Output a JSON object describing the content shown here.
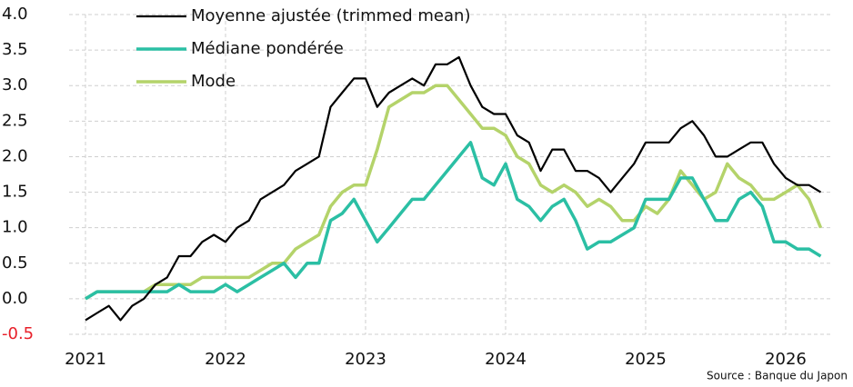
{
  "chart_data": {
    "type": "line",
    "source": "Source : Banque du Japon",
    "categories": [
      "2021",
      null,
      null,
      null,
      null,
      null,
      null,
      null,
      null,
      null,
      null,
      null,
      "2022",
      null,
      null,
      null,
      null,
      null,
      null,
      null,
      null,
      null,
      null,
      null,
      "2023",
      null,
      null,
      null,
      null,
      null,
      null,
      null,
      null,
      null,
      null,
      null,
      "2024",
      null,
      null,
      null,
      null,
      null,
      null,
      null,
      null,
      null,
      null,
      null,
      "2025",
      null,
      null,
      null,
      null,
      null,
      null,
      null,
      null,
      null,
      null,
      null,
      "2026",
      null,
      null,
      null
    ],
    "series": [
      {
        "name": "Moyenne ajustée (trimmed mean)",
        "color": "#000000",
        "values": [
          -0.3,
          -0.2,
          -0.1,
          -0.3,
          -0.1,
          0.0,
          0.2,
          0.3,
          0.6,
          0.6,
          0.8,
          0.9,
          0.8,
          1.0,
          1.1,
          1.4,
          1.5,
          1.6,
          1.8,
          1.9,
          2.0,
          2.7,
          2.9,
          3.1,
          3.1,
          2.7,
          2.9,
          3.0,
          3.1,
          3.0,
          3.3,
          3.3,
          3.4,
          3.0,
          2.7,
          2.6,
          2.6,
          2.3,
          2.2,
          1.8,
          2.1,
          2.1,
          1.8,
          1.8,
          1.7,
          1.5,
          1.7,
          1.9,
          2.2,
          2.2,
          2.2,
          2.4,
          2.5,
          2.3,
          2.0,
          2.0,
          2.1,
          2.2,
          2.2,
          1.9,
          1.7,
          1.6,
          1.6,
          1.5
        ]
      },
      {
        "name": "Médiane pondérée",
        "color": "#2bbfa4",
        "values": [
          0.0,
          0.1,
          0.1,
          0.1,
          0.1,
          0.1,
          0.1,
          0.1,
          0.2,
          0.1,
          0.1,
          0.1,
          0.2,
          0.1,
          0.2,
          0.3,
          0.4,
          0.5,
          0.3,
          0.5,
          0.5,
          1.1,
          1.2,
          1.4,
          1.1,
          0.8,
          1.0,
          1.2,
          1.4,
          1.4,
          1.6,
          1.8,
          2.0,
          2.2,
          1.7,
          1.6,
          1.9,
          1.4,
          1.3,
          1.1,
          1.3,
          1.4,
          1.1,
          0.7,
          0.8,
          0.8,
          0.9,
          1.0,
          1.4,
          1.4,
          1.4,
          1.7,
          1.7,
          1.4,
          1.1,
          1.1,
          1.4,
          1.5,
          1.3,
          0.8,
          0.8,
          0.7,
          0.7,
          0.6
        ]
      },
      {
        "name": "Mode",
        "color": "#b4d36a",
        "values": [
          0.0,
          0.1,
          0.1,
          0.1,
          0.1,
          0.1,
          0.2,
          0.2,
          0.2,
          0.2,
          0.3,
          0.3,
          0.3,
          0.3,
          0.3,
          0.4,
          0.5,
          0.5,
          0.7,
          0.8,
          0.9,
          1.3,
          1.5,
          1.6,
          1.6,
          2.1,
          2.7,
          2.8,
          2.9,
          2.9,
          3.0,
          3.0,
          2.8,
          2.6,
          2.4,
          2.4,
          2.3,
          2.0,
          1.9,
          1.6,
          1.5,
          1.6,
          1.5,
          1.3,
          1.4,
          1.3,
          1.1,
          1.1,
          1.3,
          1.2,
          1.4,
          1.8,
          1.6,
          1.4,
          1.5,
          1.9,
          1.7,
          1.6,
          1.4,
          1.4,
          1.5,
          1.6,
          1.4,
          1.0
        ]
      }
    ],
    "ylim": [
      -0.5,
      4.0
    ],
    "yticks": [
      {
        "value": 4,
        "label": "4.0"
      },
      3.5,
      {
        "value": 3,
        "label": "3.0"
      },
      2.5,
      {
        "value": 2,
        "label": "2.0"
      },
      1.5,
      {
        "value": 1,
        "label": "1.0"
      },
      0.5,
      {
        "value": 0,
        "label": "0.0"
      },
      -0.5
    ],
    "negative_tick_color": "#e8202a",
    "grid": true,
    "legend": "upper left"
  }
}
